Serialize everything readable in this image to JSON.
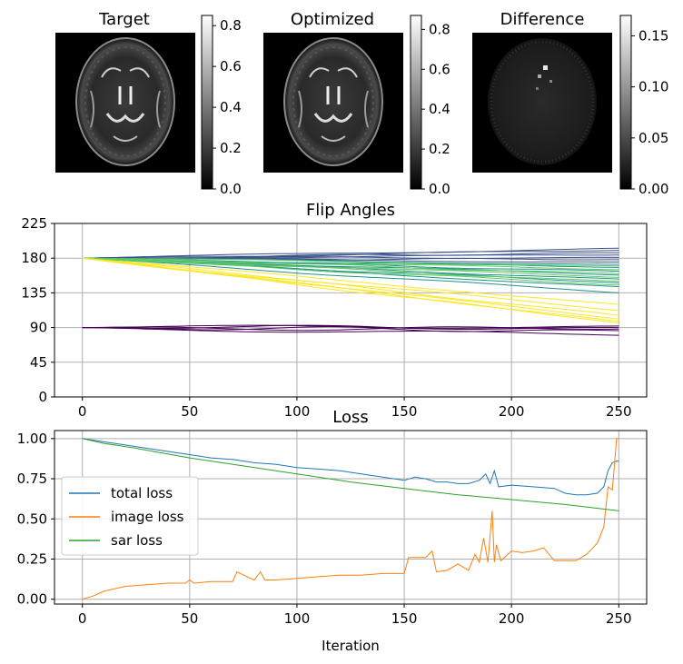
{
  "images": [
    {
      "title": "Target",
      "colorbar_ticks": [
        "0.0",
        "0.2",
        "0.4",
        "0.6",
        "0.8"
      ],
      "colorbar_min": 0,
      "colorbar_max": 0.85
    },
    {
      "title": "Optimized",
      "colorbar_ticks": [
        "0.0",
        "0.2",
        "0.4",
        "0.6",
        "0.8"
      ],
      "colorbar_min": 0,
      "colorbar_max": 0.87
    },
    {
      "title": "Difference",
      "colorbar_ticks": [
        "0.00",
        "0.05",
        "0.10",
        "0.15"
      ],
      "colorbar_min": 0,
      "colorbar_max": 0.17
    }
  ],
  "chart_data": [
    {
      "type": "line",
      "title": "Flip Angles",
      "xlabel": "",
      "ylabel": "",
      "xlim": [
        -13,
        263
      ],
      "ylim": [
        0,
        225
      ],
      "xticks": [
        0,
        50,
        100,
        150,
        200,
        250
      ],
      "yticks": [
        0,
        45,
        90,
        135,
        180,
        225
      ],
      "grid": true,
      "colormap": "viridis",
      "groups": [
        {
          "description_color": "#440154",
          "start": 90,
          "endpoints": [
            92,
            88,
            86,
            80,
            90
          ]
        },
        {
          "description_color": "#3b528b",
          "start": 180,
          "endpoints": [
            193,
            190,
            187,
            184,
            181,
            178,
            175
          ]
        },
        {
          "description_color": "#21918c",
          "start": 180,
          "endpoints": [
            172,
            168,
            163,
            158,
            153,
            148,
            143,
            135
          ]
        },
        {
          "description_color": "#5ec962",
          "start": 180,
          "endpoints": [
            170,
            165,
            160,
            155,
            150,
            145
          ]
        },
        {
          "description_color": "#fde725",
          "start": 180,
          "endpoints": [
            120,
            112,
            106,
            101,
            98,
            96
          ]
        }
      ]
    },
    {
      "type": "line",
      "title": "Loss",
      "xlabel": "Iteration",
      "ylabel": "",
      "xlim": [
        -13,
        263
      ],
      "ylim": [
        -0.03,
        1.05
      ],
      "xticks": [
        0,
        50,
        100,
        150,
        200,
        250
      ],
      "yticks": [
        0.0,
        0.25,
        0.5,
        0.75,
        1.0
      ],
      "ytick_labels": [
        "0.00",
        "0.25",
        "0.50",
        "0.75",
        "1.00"
      ],
      "grid": true,
      "legend_position": "center-left",
      "series": [
        {
          "name": "total loss",
          "color": "#1f77b4",
          "x": [
            0,
            10,
            20,
            30,
            40,
            50,
            60,
            70,
            80,
            90,
            100,
            110,
            120,
            130,
            140,
            150,
            155,
            160,
            165,
            170,
            175,
            180,
            185,
            188,
            190,
            192,
            194,
            200,
            210,
            220,
            225,
            230,
            235,
            240,
            243,
            245,
            247,
            249,
            250
          ],
          "y": [
            1.0,
            0.98,
            0.96,
            0.94,
            0.92,
            0.9,
            0.88,
            0.87,
            0.85,
            0.84,
            0.82,
            0.81,
            0.8,
            0.78,
            0.76,
            0.74,
            0.76,
            0.75,
            0.73,
            0.73,
            0.72,
            0.72,
            0.74,
            0.78,
            0.72,
            0.8,
            0.7,
            0.71,
            0.7,
            0.69,
            0.66,
            0.65,
            0.65,
            0.66,
            0.7,
            0.8,
            0.85,
            0.86,
            0.86
          ]
        },
        {
          "name": "image loss",
          "color": "#ff7f0e",
          "x": [
            0,
            5,
            10,
            20,
            30,
            40,
            48,
            50,
            52,
            60,
            70,
            72,
            80,
            83,
            85,
            90,
            100,
            110,
            120,
            130,
            140,
            150,
            152,
            155,
            160,
            163,
            165,
            170,
            175,
            180,
            183,
            185,
            187,
            189,
            191,
            192,
            193,
            195,
            200,
            205,
            210,
            215,
            220,
            225,
            230,
            235,
            240,
            243,
            245,
            247,
            249,
            250
          ],
          "y": [
            0.0,
            0.02,
            0.05,
            0.08,
            0.09,
            0.1,
            0.1,
            0.12,
            0.1,
            0.11,
            0.11,
            0.17,
            0.12,
            0.17,
            0.12,
            0.12,
            0.13,
            0.14,
            0.15,
            0.15,
            0.16,
            0.16,
            0.26,
            0.26,
            0.26,
            0.3,
            0.17,
            0.18,
            0.22,
            0.18,
            0.28,
            0.23,
            0.38,
            0.23,
            0.55,
            0.23,
            0.34,
            0.24,
            0.3,
            0.29,
            0.3,
            0.32,
            0.24,
            0.24,
            0.24,
            0.28,
            0.35,
            0.45,
            0.7,
            0.68,
            1.0,
            1.0
          ]
        },
        {
          "name": "sar loss",
          "color": "#2ca02c",
          "x": [
            0,
            10,
            25,
            50,
            75,
            100,
            125,
            150,
            175,
            200,
            225,
            250
          ],
          "y": [
            1.0,
            0.97,
            0.94,
            0.88,
            0.83,
            0.78,
            0.73,
            0.69,
            0.65,
            0.62,
            0.59,
            0.55
          ]
        }
      ]
    }
  ]
}
